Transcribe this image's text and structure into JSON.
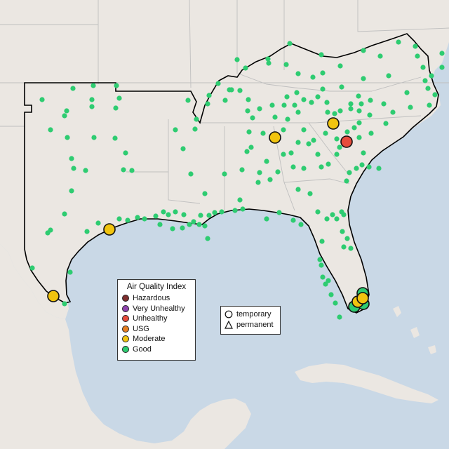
{
  "map": {
    "background_colors": {
      "water": "#c9d8e6",
      "land": "#ebe7e2",
      "states_outline": "#bfbfbf",
      "region_outline": "#000000"
    },
    "monitors": {
      "good_color": "#2ecc71",
      "moderate_color": "#f1c40f",
      "unhealthy_color": "#e74c3c",
      "marker_shape": "temporary (circle)"
    }
  },
  "aqi_legend": {
    "title": "Air Quality Index",
    "items": [
      {
        "label": "Hazardous",
        "color": "#7e2f2f"
      },
      {
        "label": "Very Unhealthy",
        "color": "#8e44ad"
      },
      {
        "label": "Unhealthy",
        "color": "#e74c3c"
      },
      {
        "label": "USG",
        "color": "#e67e22"
      },
      {
        "label": "Moderate",
        "color": "#f1c40f"
      },
      {
        "label": "Good",
        "color": "#2ecc71"
      }
    ]
  },
  "shape_legend": {
    "items": [
      {
        "label": "temporary",
        "icon": "circle-icon"
      },
      {
        "label": "permanent",
        "icon": "triangle-icon"
      }
    ]
  }
}
